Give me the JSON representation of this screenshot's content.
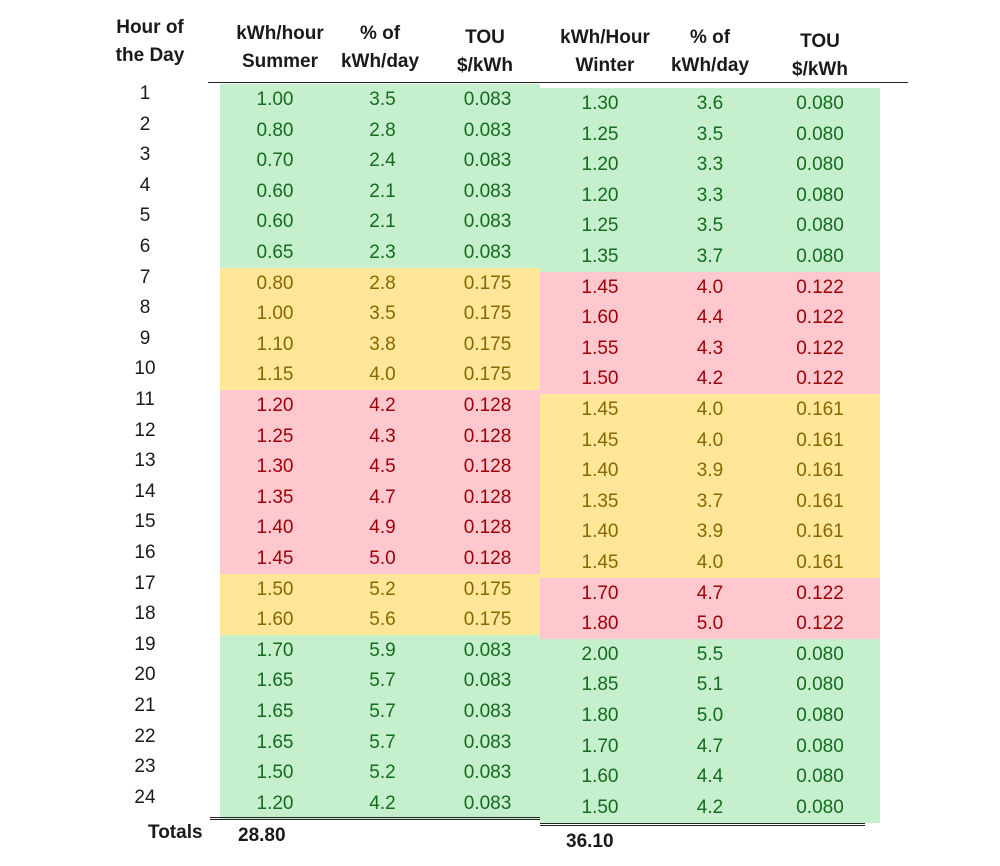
{
  "headers": [
    {
      "line1": "Hour of",
      "line2": "the Day"
    },
    {
      "line1": "kWh/hour",
      "line2": "Summer"
    },
    {
      "line1": "% of",
      "line2": "kWh/day"
    },
    {
      "line1": "TOU",
      "line2": "$/kWh"
    },
    {
      "line1": "kWh/Hour",
      "line2": "Winter"
    },
    {
      "line1": "% of",
      "line2": "kWh/day"
    },
    {
      "line1": "TOU",
      "line2": "$/kWh"
    }
  ],
  "rows": [
    {
      "hour": "1",
      "s_kwh": "1.00",
      "s_pct": "3.5",
      "s_tou": "0.083",
      "w_kwh": "1.30",
      "w_pct": "3.6",
      "w_tou": "0.080",
      "s_color": "green",
      "w_color": "green"
    },
    {
      "hour": "2",
      "s_kwh": "0.80",
      "s_pct": "2.8",
      "s_tou": "0.083",
      "w_kwh": "1.25",
      "w_pct": "3.5",
      "w_tou": "0.080",
      "s_color": "green",
      "w_color": "green"
    },
    {
      "hour": "3",
      "s_kwh": "0.70",
      "s_pct": "2.4",
      "s_tou": "0.083",
      "w_kwh": "1.20",
      "w_pct": "3.3",
      "w_tou": "0.080",
      "s_color": "green",
      "w_color": "green"
    },
    {
      "hour": "4",
      "s_kwh": "0.60",
      "s_pct": "2.1",
      "s_tou": "0.083",
      "w_kwh": "1.20",
      "w_pct": "3.3",
      "w_tou": "0.080",
      "s_color": "green",
      "w_color": "green"
    },
    {
      "hour": "5",
      "s_kwh": "0.60",
      "s_pct": "2.1",
      "s_tou": "0.083",
      "w_kwh": "1.25",
      "w_pct": "3.5",
      "w_tou": "0.080",
      "s_color": "green",
      "w_color": "green"
    },
    {
      "hour": "6",
      "s_kwh": "0.65",
      "s_pct": "2.3",
      "s_tou": "0.083",
      "w_kwh": "1.35",
      "w_pct": "3.7",
      "w_tou": "0.080",
      "s_color": "green",
      "w_color": "green"
    },
    {
      "hour": "7",
      "s_kwh": "0.80",
      "s_pct": "2.8",
      "s_tou": "0.175",
      "w_kwh": "1.45",
      "w_pct": "4.0",
      "w_tou": "0.122",
      "s_color": "yellow",
      "w_color": "red"
    },
    {
      "hour": "8",
      "s_kwh": "1.00",
      "s_pct": "3.5",
      "s_tou": "0.175",
      "w_kwh": "1.60",
      "w_pct": "4.4",
      "w_tou": "0.122",
      "s_color": "yellow",
      "w_color": "red"
    },
    {
      "hour": "9",
      "s_kwh": "1.10",
      "s_pct": "3.8",
      "s_tou": "0.175",
      "w_kwh": "1.55",
      "w_pct": "4.3",
      "w_tou": "0.122",
      "s_color": "yellow",
      "w_color": "red"
    },
    {
      "hour": "10",
      "s_kwh": "1.15",
      "s_pct": "4.0",
      "s_tou": "0.175",
      "w_kwh": "1.50",
      "w_pct": "4.2",
      "w_tou": "0.122",
      "s_color": "yellow",
      "w_color": "red"
    },
    {
      "hour": "11",
      "s_kwh": "1.20",
      "s_pct": "4.2",
      "s_tou": "0.128",
      "w_kwh": "1.45",
      "w_pct": "4.0",
      "w_tou": "0.161",
      "s_color": "red",
      "w_color": "yellow"
    },
    {
      "hour": "12",
      "s_kwh": "1.25",
      "s_pct": "4.3",
      "s_tou": "0.128",
      "w_kwh": "1.45",
      "w_pct": "4.0",
      "w_tou": "0.161",
      "s_color": "red",
      "w_color": "yellow"
    },
    {
      "hour": "13",
      "s_kwh": "1.30",
      "s_pct": "4.5",
      "s_tou": "0.128",
      "w_kwh": "1.40",
      "w_pct": "3.9",
      "w_tou": "0.161",
      "s_color": "red",
      "w_color": "yellow"
    },
    {
      "hour": "14",
      "s_kwh": "1.35",
      "s_pct": "4.7",
      "s_tou": "0.128",
      "w_kwh": "1.35",
      "w_pct": "3.7",
      "w_tou": "0.161",
      "s_color": "red",
      "w_color": "yellow"
    },
    {
      "hour": "15",
      "s_kwh": "1.40",
      "s_pct": "4.9",
      "s_tou": "0.128",
      "w_kwh": "1.40",
      "w_pct": "3.9",
      "w_tou": "0.161",
      "s_color": "red",
      "w_color": "yellow"
    },
    {
      "hour": "16",
      "s_kwh": "1.45",
      "s_pct": "5.0",
      "s_tou": "0.128",
      "w_kwh": "1.45",
      "w_pct": "4.0",
      "w_tou": "0.161",
      "s_color": "red",
      "w_color": "yellow"
    },
    {
      "hour": "17",
      "s_kwh": "1.50",
      "s_pct": "5.2",
      "s_tou": "0.175",
      "w_kwh": "1.70",
      "w_pct": "4.7",
      "w_tou": "0.122",
      "s_color": "yellow",
      "w_color": "red"
    },
    {
      "hour": "18",
      "s_kwh": "1.60",
      "s_pct": "5.6",
      "s_tou": "0.175",
      "w_kwh": "1.80",
      "w_pct": "5.0",
      "w_tou": "0.122",
      "s_color": "yellow",
      "w_color": "red"
    },
    {
      "hour": "19",
      "s_kwh": "1.70",
      "s_pct": "5.9",
      "s_tou": "0.083",
      "w_kwh": "2.00",
      "w_pct": "5.5",
      "w_tou": "0.080",
      "s_color": "green",
      "w_color": "green"
    },
    {
      "hour": "20",
      "s_kwh": "1.65",
      "s_pct": "5.7",
      "s_tou": "0.083",
      "w_kwh": "1.85",
      "w_pct": "5.1",
      "w_tou": "0.080",
      "s_color": "green",
      "w_color": "green"
    },
    {
      "hour": "21",
      "s_kwh": "1.65",
      "s_pct": "5.7",
      "s_tou": "0.083",
      "w_kwh": "1.80",
      "w_pct": "5.0",
      "w_tou": "0.080",
      "s_color": "green",
      "w_color": "green"
    },
    {
      "hour": "22",
      "s_kwh": "1.65",
      "s_pct": "5.7",
      "s_tou": "0.083",
      "w_kwh": "1.70",
      "w_pct": "4.7",
      "w_tou": "0.080",
      "s_color": "green",
      "w_color": "green"
    },
    {
      "hour": "23",
      "s_kwh": "1.50",
      "s_pct": "5.2",
      "s_tou": "0.083",
      "w_kwh": "1.60",
      "w_pct": "4.4",
      "w_tou": "0.080",
      "s_color": "green",
      "w_color": "green"
    },
    {
      "hour": "24",
      "s_kwh": "1.20",
      "s_pct": "4.2",
      "s_tou": "0.083",
      "w_kwh": "1.50",
      "w_pct": "4.2",
      "w_tou": "0.080",
      "s_color": "green",
      "w_color": "green"
    }
  ],
  "totals": {
    "label": "Totals",
    "summer": "28.80",
    "winter": "36.10"
  },
  "colors": {
    "green": "#c6efce",
    "yellow": "#ffe699",
    "red": "#ffc7ce"
  }
}
